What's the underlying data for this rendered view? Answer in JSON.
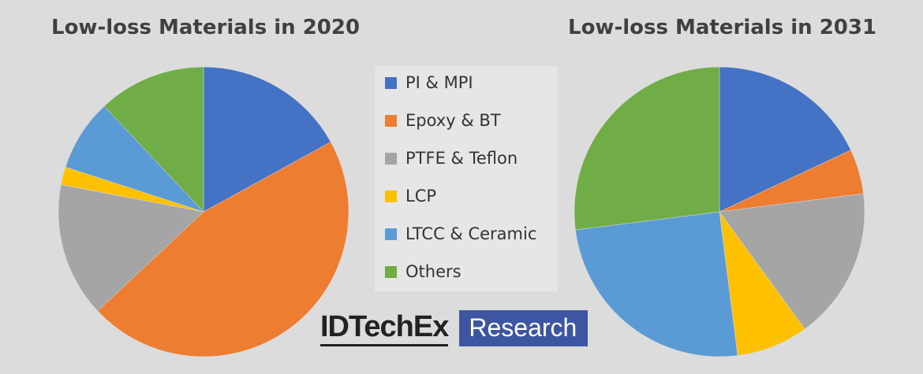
{
  "chart_data": [
    {
      "type": "pie",
      "title": "Low-loss Materials in 2020",
      "categories": [
        "PI & MPI",
        "Epoxy & BT",
        "PTFE & Teflon",
        "LCP",
        "LTCC & Ceramic",
        "Others"
      ],
      "values": [
        17,
        46,
        15,
        2,
        8,
        12
      ]
    },
    {
      "type": "pie",
      "title": "Low-loss Materials in 2031",
      "categories": [
        "PI & MPI",
        "Epoxy & BT",
        "PTFE & Teflon",
        "LCP",
        "LTCC & Ceramic",
        "Others"
      ],
      "values": [
        18,
        5,
        17,
        8,
        25,
        27
      ]
    }
  ],
  "legend": {
    "items": [
      {
        "label": "PI & MPI",
        "color": "#4472c4"
      },
      {
        "label": "Epoxy & BT",
        "color": "#ed7d31"
      },
      {
        "label": "PTFE & Teflon",
        "color": "#a5a5a5"
      },
      {
        "label": "LCP",
        "color": "#ffc000"
      },
      {
        "label": "LTCC & Ceramic",
        "color": "#5b9bd5"
      },
      {
        "label": "Others",
        "color": "#70ad47"
      }
    ]
  },
  "logo": {
    "brand": "IDTechEx",
    "tag": "Research"
  }
}
